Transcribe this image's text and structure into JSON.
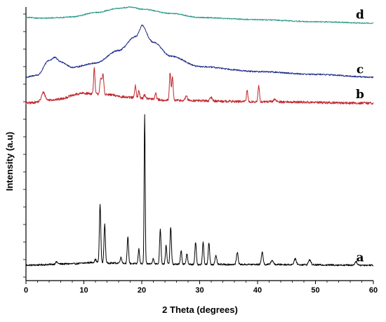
{
  "chart_data": {
    "type": "line",
    "title": "",
    "xlabel": "2 Theta (degrees)",
    "ylabel": "Intensity (a.u)",
    "xlim": [
      0,
      60
    ],
    "x_ticks": [
      "0",
      "10",
      "20",
      "30",
      "40",
      "50",
      "60"
    ],
    "grid": false,
    "legend": "none",
    "series": [
      {
        "name": "a",
        "color": "#000000",
        "baseline": 14,
        "noise": 1.2,
        "background": [
          [
            0,
            0
          ],
          [
            8,
            2
          ],
          [
            12,
            4
          ],
          [
            15,
            3
          ],
          [
            20,
            2
          ],
          [
            30,
            1
          ],
          [
            40,
            1
          ],
          [
            60,
            0
          ]
        ],
        "peaks": [
          [
            5.3,
            3,
            0.2
          ],
          [
            12.0,
            4,
            0.15
          ],
          [
            12.8,
            83,
            0.12
          ],
          [
            13.6,
            55,
            0.12
          ],
          [
            16.4,
            8,
            0.15
          ],
          [
            17.6,
            37,
            0.12
          ],
          [
            19.5,
            21,
            0.12
          ],
          [
            20.5,
            213,
            0.09
          ],
          [
            22.0,
            8,
            0.12
          ],
          [
            23.2,
            50,
            0.12
          ],
          [
            24.2,
            26,
            0.12
          ],
          [
            25.0,
            53,
            0.12
          ],
          [
            26.8,
            20,
            0.12
          ],
          [
            27.8,
            16,
            0.12
          ],
          [
            29.3,
            32,
            0.12
          ],
          [
            30.6,
            32,
            0.12
          ],
          [
            31.6,
            31,
            0.12
          ],
          [
            32.8,
            12,
            0.15
          ],
          [
            36.5,
            17,
            0.15
          ],
          [
            40.8,
            18,
            0.15
          ],
          [
            42.5,
            6,
            0.2
          ],
          [
            46.5,
            8,
            0.2
          ],
          [
            49.0,
            7,
            0.2
          ],
          [
            57.0,
            5,
            0.2
          ]
        ]
      },
      {
        "name": "b",
        "color": "#c0272d",
        "baseline": 245,
        "noise": 1.8,
        "background": [
          [
            0,
            0
          ],
          [
            5,
            5
          ],
          [
            10,
            14
          ],
          [
            14,
            12
          ],
          [
            18,
            8
          ],
          [
            25,
            4
          ],
          [
            40,
            2
          ],
          [
            60,
            0
          ]
        ],
        "peaks": [
          [
            3.0,
            12,
            0.3
          ],
          [
            11.8,
            36,
            0.12
          ],
          [
            12.9,
            22,
            0.15
          ],
          [
            13.3,
            28,
            0.15
          ],
          [
            18.9,
            17,
            0.12
          ],
          [
            19.5,
            10,
            0.12
          ],
          [
            20.5,
            6,
            0.12
          ],
          [
            22.4,
            10,
            0.12
          ],
          [
            24.9,
            40,
            0.12
          ],
          [
            25.3,
            33,
            0.12
          ],
          [
            27.7,
            7,
            0.15
          ],
          [
            32.0,
            5,
            0.2
          ],
          [
            38.2,
            16,
            0.12
          ],
          [
            40.2,
            22,
            0.12
          ],
          [
            43.0,
            4,
            0.2
          ]
        ]
      },
      {
        "name": "c",
        "color": "#1f2d8a",
        "baseline": 282,
        "noise": 1.0,
        "background": [
          [
            0,
            0
          ],
          [
            2,
            3
          ],
          [
            4,
            24
          ],
          [
            5,
            28
          ],
          [
            6,
            22
          ],
          [
            8,
            14
          ],
          [
            12,
            20
          ],
          [
            16,
            38
          ],
          [
            19,
            58
          ],
          [
            20,
            68
          ],
          [
            22,
            50
          ],
          [
            25,
            30
          ],
          [
            30,
            15
          ],
          [
            40,
            8
          ],
          [
            50,
            4
          ],
          [
            60,
            0
          ]
        ],
        "peaks": [
          [
            20.2,
            6,
            0.4
          ]
        ]
      },
      {
        "name": "d",
        "color": "#2a9a8a",
        "baseline": 357,
        "noise": 0.8,
        "background": [
          [
            0,
            10
          ],
          [
            3,
            9
          ],
          [
            6,
            10
          ],
          [
            8,
            11
          ],
          [
            12,
            17
          ],
          [
            16,
            23
          ],
          [
            18,
            25
          ],
          [
            20,
            22
          ],
          [
            25,
            16
          ],
          [
            30,
            10
          ],
          [
            40,
            7
          ],
          [
            50,
            4
          ],
          [
            60,
            2
          ]
        ],
        "peaks": []
      }
    ]
  }
}
